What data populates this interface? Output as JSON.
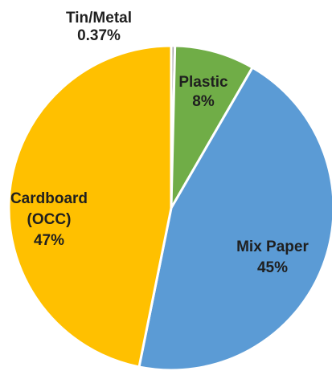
{
  "chart_data": {
    "type": "pie",
    "title": "",
    "start_angle_deg": 0,
    "direction": "clockwise",
    "slices": [
      {
        "name": "Tin/Metal",
        "label_lines": [
          "Tin/Metal",
          "0.37%"
        ],
        "value": 0.37,
        "color": "#A5A5A5"
      },
      {
        "name": "Plastic",
        "label_lines": [
          "Plastic",
          "8%"
        ],
        "value": 8,
        "color": "#70AD47"
      },
      {
        "name": "Mix Paper",
        "label_lines": [
          "Mix Paper",
          "45%"
        ],
        "value": 45,
        "color": "#5B9BD5"
      },
      {
        "name": "Cardboard (OCC)",
        "label_lines": [
          "Cardboard",
          "(OCC)",
          "47%"
        ],
        "value": 47,
        "color": "#FFC000"
      }
    ]
  }
}
